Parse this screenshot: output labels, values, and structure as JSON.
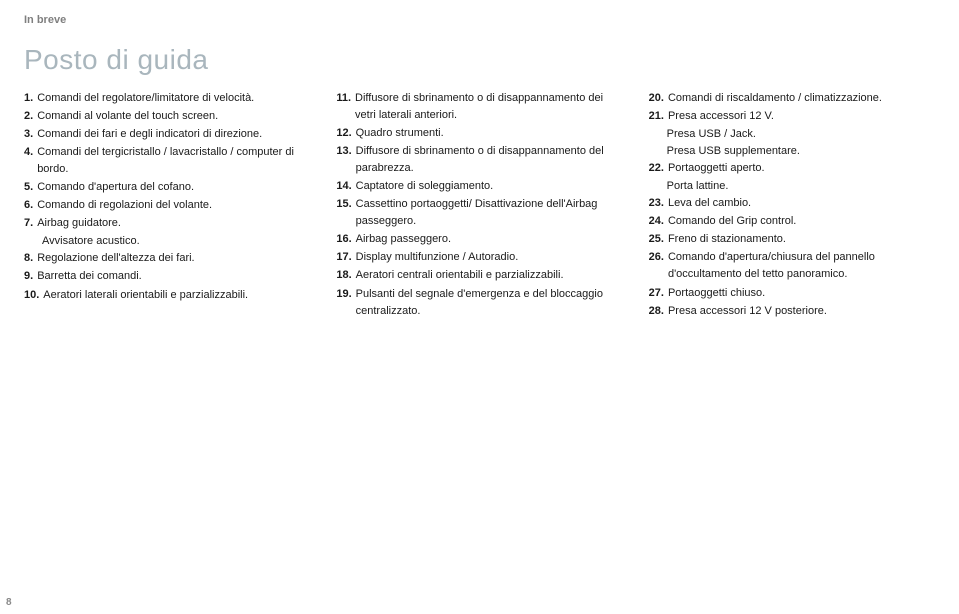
{
  "header_label": "In breve",
  "title": "Posto di guida",
  "page_number": "8",
  "col1": [
    {
      "n": "1.",
      "t": "Comandi del regolatore/limitatore di velocità."
    },
    {
      "n": "2.",
      "t": "Comandi al volante del touch screen."
    },
    {
      "n": "3.",
      "t": "Comandi dei fari e degli indicatori di direzione."
    },
    {
      "n": "4.",
      "t": "Comandi del tergicristallo / lavacristallo / computer di bordo."
    },
    {
      "n": "5.",
      "t": "Comando d'apertura del cofano."
    },
    {
      "n": "6.",
      "t": "Comando di regolazioni del volante."
    },
    {
      "n": "7.",
      "t": "Airbag guidatore.",
      "sub": "Avvisatore acustico."
    },
    {
      "n": "8.",
      "t": "Regolazione dell'altezza dei fari."
    },
    {
      "n": "9.",
      "t": "Barretta dei comandi."
    },
    {
      "n": "10.",
      "t": "Aeratori laterali orientabili e parzializzabili."
    }
  ],
  "col2": [
    {
      "n": "11.",
      "t": "Diffusore di sbrinamento o di disappannamento dei vetri laterali anteriori."
    },
    {
      "n": "12.",
      "t": "Quadro strumenti."
    },
    {
      "n": "13.",
      "t": "Diffusore di sbrinamento o di disappannamento del parabrezza."
    },
    {
      "n": "14.",
      "t": "Captatore di soleggiamento."
    },
    {
      "n": "15.",
      "t": "Cassettino portaoggetti/ Disattivazione dell'Airbag passeggero."
    },
    {
      "n": "16.",
      "t": "Airbag passeggero."
    },
    {
      "n": "17.",
      "t": "Display multifunzione / Autoradio."
    },
    {
      "n": "18.",
      "t": "Aeratori centrali orientabili e parzializzabili."
    },
    {
      "n": "19.",
      "t": "Pulsanti del segnale d'emergenza e del bloccaggio centralizzato."
    }
  ],
  "col3": [
    {
      "n": "20.",
      "t": "Comandi di riscaldamento / climatizzazione."
    },
    {
      "n": "21.",
      "t": "Presa accessori 12 V.",
      "sub": "Presa USB / Jack.",
      "sub2": "Presa USB supplementare."
    },
    {
      "n": "22.",
      "t": "Portaoggetti aperto.",
      "sub": "Porta lattine."
    },
    {
      "n": "23.",
      "t": "Leva del cambio."
    },
    {
      "n": "24.",
      "t": "Comando del Grip control."
    },
    {
      "n": "25.",
      "t": "Freno di stazionamento."
    },
    {
      "n": "26.",
      "t": "Comando d'apertura/chiusura del pannello d'occultamento del tetto panoramico."
    },
    {
      "n": "27.",
      "t": "Portaoggetti chiuso."
    },
    {
      "n": "28.",
      "t": "Presa accessori 12 V posteriore."
    }
  ]
}
